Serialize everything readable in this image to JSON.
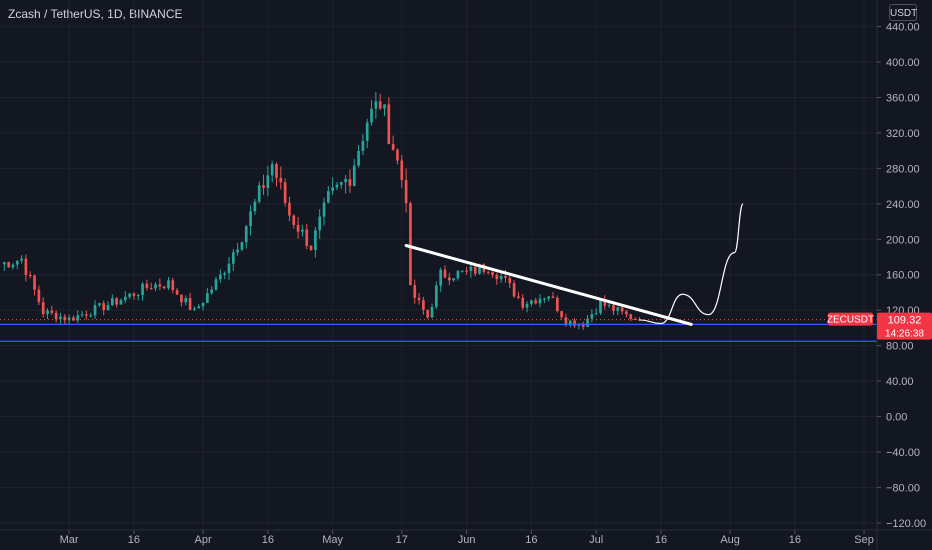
{
  "header": {
    "symbol_name": "Zcash / TetherUS",
    "interval": "1D",
    "exchange": "BINANCE",
    "separator": ", "
  },
  "price_axis": {
    "currency": "USDT",
    "ticks": [
      "440.00",
      "400.00",
      "360.00",
      "320.00",
      "280.00",
      "240.00",
      "200.00",
      "160.00",
      "120.00",
      "80.00",
      "40.00",
      "0.00",
      "−40.00",
      "−80.00",
      "−120.00"
    ],
    "tick_values": [
      440,
      400,
      360,
      320,
      280,
      240,
      200,
      160,
      120,
      80,
      40,
      0,
      -40,
      -80,
      -120
    ]
  },
  "time_axis": {
    "labels": [
      "Mar",
      "16",
      "Apr",
      "16",
      "May",
      "17",
      "Jun",
      "16",
      "Jul",
      "16",
      "Aug",
      "16",
      "Sep"
    ],
    "label_dates": [
      "2021-03-01",
      "2021-03-16",
      "2021-04-01",
      "2021-04-16",
      "2021-05-01",
      "2021-05-17",
      "2021-06-01",
      "2021-06-16",
      "2021-07-01",
      "2021-07-16",
      "2021-08-01",
      "2021-08-16",
      "2021-09-01"
    ]
  },
  "last_price": {
    "symbol": "ZECUSDT",
    "price": "109.32",
    "value": 109.32,
    "countdown": "14:26:38"
  },
  "colors": {
    "background": "#131722",
    "up": "#26a69a",
    "down": "#ef5350",
    "grid": "#1e222d",
    "axis_text": "#b2b5be",
    "support_line": "#2962ff",
    "trendline": "#ffffff",
    "projection": "#ffffff",
    "price_label_bg": "#f23645"
  },
  "chart_data": {
    "type": "candlestick",
    "title": "",
    "ylim": [
      -128,
      470
    ],
    "xlim": [
      "2021-02-13",
      "2021-09-04"
    ],
    "grid": true,
    "trend_mode": "ohlc walk following these key closes",
    "keypoints": [
      {
        "date": "2021-02-13",
        "close": 172
      },
      {
        "date": "2021-02-18",
        "close": 178
      },
      {
        "date": "2021-02-23",
        "close": 118
      },
      {
        "date": "2021-03-01",
        "close": 110
      },
      {
        "date": "2021-03-12",
        "close": 130
      },
      {
        "date": "2021-03-20",
        "close": 148
      },
      {
        "date": "2021-03-24",
        "close": 150
      },
      {
        "date": "2021-03-30",
        "close": 118
      },
      {
        "date": "2021-04-05",
        "close": 158
      },
      {
        "date": "2021-04-10",
        "close": 205
      },
      {
        "date": "2021-04-17",
        "close": 285
      },
      {
        "date": "2021-04-21",
        "close": 228
      },
      {
        "date": "2021-04-26",
        "close": 192
      },
      {
        "date": "2021-04-30",
        "close": 245
      },
      {
        "date": "2021-05-05",
        "close": 272
      },
      {
        "date": "2021-05-09",
        "close": 335
      },
      {
        "date": "2021-05-12",
        "close": 355
      },
      {
        "date": "2021-05-15",
        "close": 305
      },
      {
        "date": "2021-05-18",
        "close": 250
      },
      {
        "date": "2021-05-19",
        "close": 142
      },
      {
        "date": "2021-05-23",
        "close": 112
      },
      {
        "date": "2021-05-26",
        "close": 160
      },
      {
        "date": "2021-06-01",
        "close": 162
      },
      {
        "date": "2021-06-06",
        "close": 170
      },
      {
        "date": "2021-06-09",
        "close": 158
      },
      {
        "date": "2021-06-14",
        "close": 128
      },
      {
        "date": "2021-06-20",
        "close": 138
      },
      {
        "date": "2021-06-24",
        "close": 108
      },
      {
        "date": "2021-06-28",
        "close": 105
      },
      {
        "date": "2021-07-02",
        "close": 128
      },
      {
        "date": "2021-07-08",
        "close": 114
      },
      {
        "date": "2021-07-11",
        "close": 109.32
      }
    ],
    "support_lines": [
      {
        "label": "support-upper",
        "price": 104
      },
      {
        "label": "support-lower",
        "price": 85
      }
    ],
    "trendline": {
      "from": {
        "date": "2021-05-18",
        "price": 193
      },
      "to": {
        "date": "2021-07-23",
        "price": 104
      }
    },
    "projection": [
      {
        "date": "2021-07-11",
        "price": 109
      },
      {
        "date": "2021-07-16",
        "price": 105
      },
      {
        "date": "2021-07-21",
        "price": 138
      },
      {
        "date": "2021-07-27",
        "price": 115
      },
      {
        "date": "2021-08-02",
        "price": 185
      },
      {
        "date": "2021-08-04",
        "price": 240
      }
    ]
  }
}
